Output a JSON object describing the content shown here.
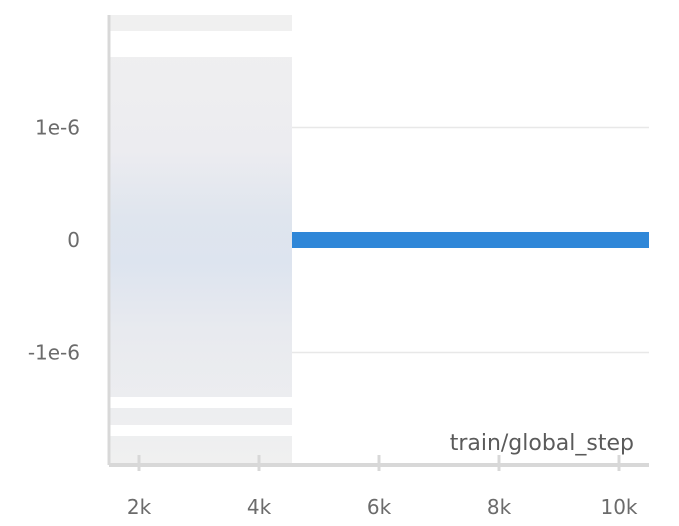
{
  "chart_data": {
    "type": "line",
    "title": "",
    "xlabel": "train/global_step",
    "ylabel": "",
    "xlim": [
      1500,
      10500
    ],
    "ylim": [
      -2e-06,
      2e-06
    ],
    "x_ticks": [
      {
        "value": 2000,
        "label": "2k"
      },
      {
        "value": 4000,
        "label": "4k"
      },
      {
        "value": 6000,
        "label": "6k"
      },
      {
        "value": 8000,
        "label": "8k"
      },
      {
        "value": 10000,
        "label": "10k"
      }
    ],
    "y_ticks": [
      {
        "value": 1e-06,
        "label": "1e-6"
      },
      {
        "value": 0,
        "label": "0"
      },
      {
        "value": -1e-06,
        "label": "-1e-6"
      }
    ],
    "grid": true,
    "legend": "none",
    "shaded_region": {
      "x_start": 1500,
      "x_end": 4550
    },
    "series": [
      {
        "color": "#2f87d8",
        "x": [
          4550,
          10500
        ],
        "y": [
          0,
          0
        ]
      }
    ]
  }
}
